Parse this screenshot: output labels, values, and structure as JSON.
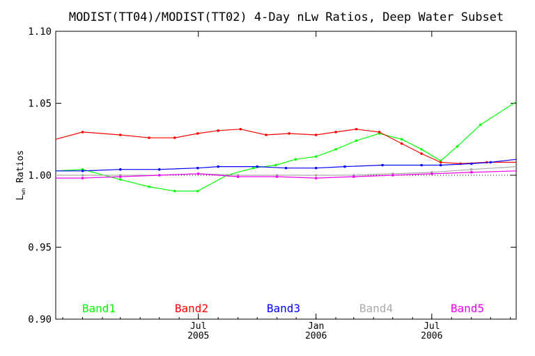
{
  "chart_data": {
    "type": "line",
    "title": "MODIST(TT04)/MODIST(TT02) 4-Day nLw Ratios, Deep Water Subset",
    "ylabel_main": "L",
    "ylabel_sub": "wn",
    "ylabel_rest": " Ratios",
    "ylim": [
      0.9,
      1.1
    ],
    "yticks": [
      0.9,
      0.95,
      1.0,
      1.05,
      1.1
    ],
    "ytick_labels": [
      "0.90",
      "0.95",
      "1.00",
      "1.05",
      "1.10"
    ],
    "xlim": [
      "2004-11-20",
      "2006-11-10"
    ],
    "xticks": [
      {
        "date": "2005-07-01",
        "label1": "Jul",
        "label2": "2005"
      },
      {
        "date": "2006-01-01",
        "label1": "Jan",
        "label2": "2006"
      },
      {
        "date": "2006-07-01",
        "label1": "Jul",
        "label2": "2006"
      }
    ],
    "reference_line": {
      "y": 1.0,
      "style": "dotted"
    },
    "grid": false,
    "legend_position": "bottom",
    "series": [
      {
        "name": "Band1",
        "color": "#00ff00",
        "points": [
          [
            "2004-11-20",
            1.003
          ],
          [
            "2005-01-01",
            1.004
          ],
          [
            "2005-03-01",
            0.997
          ],
          [
            "2005-04-15",
            0.992
          ],
          [
            "2005-05-25",
            0.989
          ],
          [
            "2005-06-30",
            0.989
          ],
          [
            "2005-08-15",
            1.0
          ],
          [
            "2005-09-25",
            1.005
          ],
          [
            "2005-10-30",
            1.007
          ],
          [
            "2005-11-30",
            1.011
          ],
          [
            "2006-01-01",
            1.013
          ],
          [
            "2006-02-01",
            1.018
          ],
          [
            "2006-03-05",
            1.024
          ],
          [
            "2006-04-10",
            1.029
          ],
          [
            "2006-05-15",
            1.025
          ],
          [
            "2006-06-15",
            1.018
          ],
          [
            "2006-07-15",
            1.01
          ],
          [
            "2006-08-10",
            1.02
          ],
          [
            "2006-09-15",
            1.035
          ],
          [
            "2006-11-10",
            1.051
          ]
        ]
      },
      {
        "name": "Band2",
        "color": "#ff0000",
        "points": [
          [
            "2004-11-20",
            1.025
          ],
          [
            "2005-01-01",
            1.03
          ],
          [
            "2005-03-01",
            1.028
          ],
          [
            "2005-04-15",
            1.026
          ],
          [
            "2005-05-25",
            1.026
          ],
          [
            "2005-06-30",
            1.029
          ],
          [
            "2005-08-01",
            1.031
          ],
          [
            "2005-09-05",
            1.032
          ],
          [
            "2005-10-15",
            1.028
          ],
          [
            "2005-11-20",
            1.029
          ],
          [
            "2006-01-01",
            1.028
          ],
          [
            "2006-02-01",
            1.03
          ],
          [
            "2006-03-05",
            1.032
          ],
          [
            "2006-04-10",
            1.03
          ],
          [
            "2006-05-15",
            1.022
          ],
          [
            "2006-06-15",
            1.015
          ],
          [
            "2006-07-15",
            1.009
          ],
          [
            "2006-08-15",
            1.008
          ],
          [
            "2006-09-25",
            1.009
          ],
          [
            "2006-11-10",
            1.009
          ]
        ]
      },
      {
        "name": "Band3",
        "color": "#0000ff",
        "points": [
          [
            "2004-11-20",
            1.003
          ],
          [
            "2005-01-01",
            1.003
          ],
          [
            "2005-03-01",
            1.004
          ],
          [
            "2005-05-01",
            1.004
          ],
          [
            "2005-06-30",
            1.005
          ],
          [
            "2005-08-01",
            1.006
          ],
          [
            "2005-10-01",
            1.006
          ],
          [
            "2005-11-15",
            1.005
          ],
          [
            "2006-01-01",
            1.005
          ],
          [
            "2006-02-15",
            1.006
          ],
          [
            "2006-04-15",
            1.007
          ],
          [
            "2006-06-15",
            1.007
          ],
          [
            "2006-07-15",
            1.007
          ],
          [
            "2006-09-01",
            1.008
          ],
          [
            "2006-10-01",
            1.009
          ],
          [
            "2006-11-10",
            1.011
          ]
        ]
      },
      {
        "name": "Band4",
        "color": "#aaaaaa",
        "points": [
          [
            "2004-11-20",
            1.0
          ],
          [
            "2005-01-01",
            1.0
          ],
          [
            "2005-03-01",
            1.0
          ],
          [
            "2005-05-01",
            1.0
          ],
          [
            "2005-07-01",
            1.001
          ],
          [
            "2005-09-01",
            1.0
          ],
          [
            "2005-11-01",
            1.0
          ],
          [
            "2006-01-01",
            1.0
          ],
          [
            "2006-03-01",
            1.0
          ],
          [
            "2006-05-01",
            1.001
          ],
          [
            "2006-07-01",
            1.002
          ],
          [
            "2006-09-01",
            1.004
          ],
          [
            "2006-11-10",
            1.006
          ]
        ]
      },
      {
        "name": "Band5",
        "color": "#ee00ee",
        "points": [
          [
            "2004-11-20",
            0.998
          ],
          [
            "2005-01-01",
            0.998
          ],
          [
            "2005-03-01",
            0.999
          ],
          [
            "2005-05-01",
            1.0
          ],
          [
            "2005-07-01",
            1.001
          ],
          [
            "2005-09-01",
            0.999
          ],
          [
            "2005-11-01",
            0.999
          ],
          [
            "2006-01-01",
            0.998
          ],
          [
            "2006-03-01",
            0.999
          ],
          [
            "2006-05-01",
            1.0
          ],
          [
            "2006-07-01",
            1.001
          ],
          [
            "2006-09-01",
            1.002
          ],
          [
            "2006-11-10",
            1.003
          ]
        ]
      }
    ]
  }
}
